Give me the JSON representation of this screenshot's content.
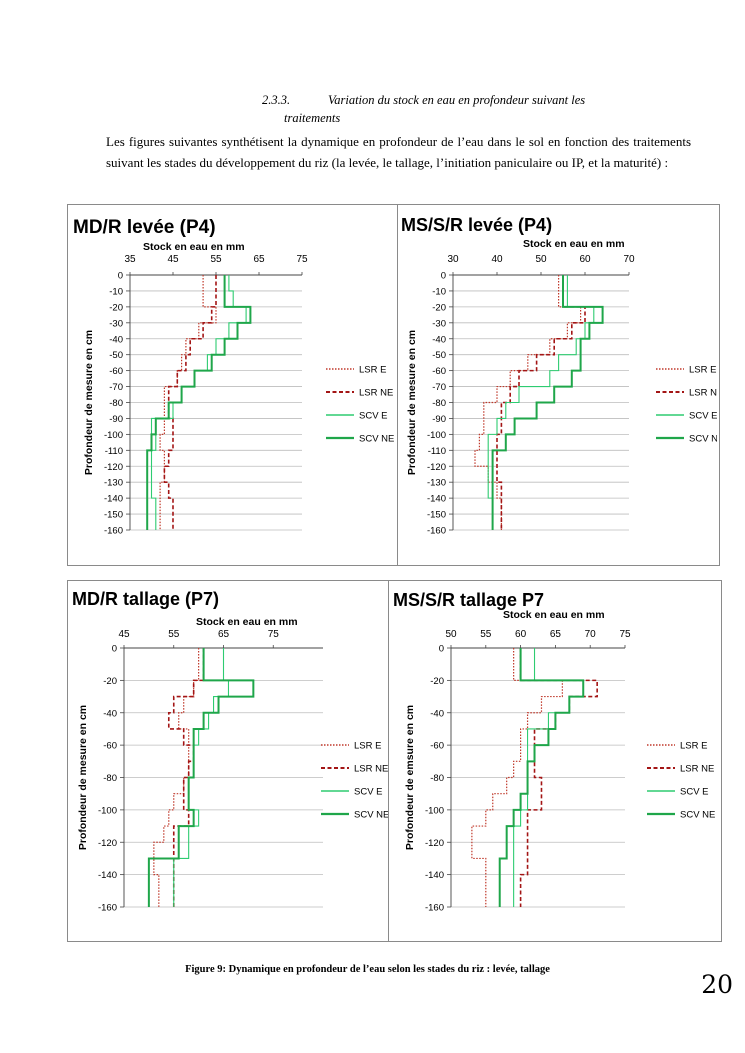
{
  "section": {
    "number": "2.3.3.",
    "title_line1": "Variation du stock en eau en profondeur suivant les",
    "title_line2": "traitements"
  },
  "paragraph": "Les figures suivantes synthétisent la dynamique en profondeur de l’eau dans le sol en fonction des traitements suivant les stades du développement du riz (la levée, le tallage, l’initiation paniculaire ou IP, et la maturité) :",
  "caption": "Figure 9: Dynamique en profondeur de l’eau selon les stades du riz : levée, tallage",
  "page_number": "20",
  "series_styles": [
    {
      "name": "LSR E",
      "color": "#c0392b",
      "dash": "1.5,1.5",
      "width": 1.2
    },
    {
      "name": "LSR NE",
      "color": "#a31515",
      "dash": "4,2.5",
      "width": 1.6
    },
    {
      "name": "SCV E",
      "color": "#2ecc71",
      "dash": "",
      "width": 1.1
    },
    {
      "name": "SCV NE",
      "color": "#1fa64a",
      "dash": "",
      "width": 2.0
    }
  ],
  "chart_data": [
    {
      "type": "line",
      "title": "MD/R levée (P4)",
      "xlabel": "Stock en eau en mm",
      "ylabel": "Profondeur de mesure en cm",
      "xlim": [
        35,
        75
      ],
      "xticks": [
        "35",
        "45",
        "55",
        "65",
        "75"
      ],
      "ylim": [
        -160,
        0
      ],
      "yticks": [
        "0",
        "-10",
        "-20",
        "-30",
        "-40",
        "-50",
        "-60",
        "-70",
        "-80",
        "-90",
        "-100",
        "-110",
        "-120",
        "-130",
        "-140",
        "-150",
        "-160"
      ],
      "depths": [
        0,
        -10,
        -20,
        -30,
        -40,
        -50,
        -60,
        -70,
        -80,
        -90,
        -100,
        -110,
        -120,
        -130,
        -140,
        -150
      ],
      "series": [
        {
          "name": "LSR E",
          "values": [
            52,
            52,
            55,
            51,
            48,
            47,
            46,
            43,
            43,
            43,
            42,
            43,
            43,
            42,
            42,
            42
          ]
        },
        {
          "name": "LSR NE",
          "values": [
            55,
            55,
            54,
            52,
            49,
            48,
            46,
            44,
            44,
            45,
            45,
            44,
            43,
            44,
            45,
            45
          ]
        },
        {
          "name": "SCV E",
          "values": [
            58,
            59,
            62,
            58,
            55,
            53,
            50,
            47,
            45,
            40,
            41,
            40,
            40,
            40,
            41,
            41
          ]
        },
        {
          "name": "SCV NE",
          "values": [
            57,
            57,
            63,
            60,
            57,
            54,
            50,
            47,
            44,
            41,
            40,
            39,
            39,
            39,
            39,
            39
          ]
        }
      ]
    },
    {
      "type": "line",
      "title": "MS/S/R levée (P4)",
      "xlabel": "Stock en eau en mm",
      "ylabel": "Profondeur de mesure en cm",
      "xlim": [
        30,
        70
      ],
      "xticks": [
        "30",
        "40",
        "50",
        "60",
        "70"
      ],
      "ylim": [
        -160,
        0
      ],
      "yticks": [
        "0",
        "-10",
        "-20",
        "-30",
        "-40",
        "-50",
        "-60",
        "-70",
        "-80",
        "-90",
        "-100",
        "-110",
        "-120",
        "-130",
        "-140",
        "-150",
        "-160"
      ],
      "depths": [
        0,
        -10,
        -20,
        -30,
        -40,
        -50,
        -60,
        -70,
        -80,
        -90,
        -100,
        -110,
        -120,
        -130,
        -140,
        -150
      ],
      "series": [
        {
          "name": "LSR E",
          "values": [
            54,
            54,
            59,
            56,
            52,
            47,
            43,
            40,
            37,
            37,
            36,
            35,
            38,
            40,
            41,
            41
          ]
        },
        {
          "name": "LSR NE",
          "values": [
            55,
            55,
            60,
            57,
            53,
            49,
            45,
            43,
            41,
            41,
            40,
            40,
            40,
            41,
            41,
            41
          ]
        },
        {
          "name": "SCV E",
          "values": [
            56,
            56,
            62,
            60,
            58,
            54,
            52,
            45,
            42,
            40,
            38,
            38,
            38,
            38,
            39,
            39
          ]
        },
        {
          "name": "SCV NE",
          "values": [
            55,
            55,
            64,
            61,
            59,
            59,
            57,
            53,
            49,
            44,
            42,
            39,
            39,
            39,
            39,
            39
          ]
        }
      ]
    },
    {
      "type": "line",
      "title": "MD/R tallage (P7)",
      "xlabel": "Stock en eau en mm",
      "ylabel": "Profondeur de mesure en cm",
      "xlim": [
        45,
        85
      ],
      "xticks": [
        "45",
        "55",
        "65",
        "75"
      ],
      "ylim": [
        -160,
        0
      ],
      "yticks": [
        "0",
        "-20",
        "-40",
        "-60",
        "-80",
        "-100",
        "-120",
        "-140",
        "-160"
      ],
      "depths": [
        0,
        -10,
        -20,
        -30,
        -40,
        -50,
        -60,
        -70,
        -80,
        -90,
        -100,
        -110,
        -120,
        -130,
        -140,
        -150
      ],
      "series": [
        {
          "name": "LSR E",
          "values": [
            60,
            60,
            59,
            57,
            56,
            58,
            58,
            58,
            57,
            55,
            54,
            53,
            51,
            51,
            52,
            52
          ]
        },
        {
          "name": "LSR NE",
          "values": [
            61,
            61,
            59,
            55,
            54,
            57,
            59,
            58,
            57,
            57,
            58,
            55,
            55,
            55,
            55,
            55
          ]
        },
        {
          "name": "SCV E",
          "values": [
            65,
            65,
            66,
            63,
            62,
            60,
            59,
            59,
            58,
            58,
            60,
            58,
            58,
            55,
            55,
            55
          ]
        },
        {
          "name": "SCV NE",
          "values": [
            61,
            61,
            71,
            64,
            61,
            59,
            59,
            59,
            58,
            58,
            59,
            56,
            56,
            50,
            50,
            50
          ]
        }
      ]
    },
    {
      "type": "line",
      "title": "MS/S/R tallage P7",
      "xlabel": "Stock en eau en mm",
      "ylabel": "Profondeur de emsure en cm",
      "xlim": [
        50,
        75
      ],
      "xticks": [
        "50",
        "55",
        "60",
        "65",
        "70",
        "75"
      ],
      "ylim": [
        -160,
        0
      ],
      "yticks": [
        "0",
        "-20",
        "-40",
        "-60",
        "-80",
        "-100",
        "-120",
        "-140",
        "-160"
      ],
      "depths": [
        0,
        -10,
        -20,
        -30,
        -40,
        -50,
        -60,
        -70,
        -80,
        -90,
        -100,
        -110,
        -120,
        -130,
        -140,
        -150
      ],
      "series": [
        {
          "name": "LSR E",
          "values": [
            59,
            59,
            66,
            63,
            61,
            60,
            60,
            59,
            58,
            56,
            55,
            53,
            53,
            55,
            55,
            55
          ]
        },
        {
          "name": "LSR NE",
          "values": [
            60,
            60,
            71,
            67,
            65,
            62,
            62,
            62,
            63,
            63,
            61,
            61,
            61,
            61,
            60,
            60
          ]
        },
        {
          "name": "SCV E",
          "values": [
            62,
            62,
            69,
            67,
            64,
            61,
            61,
            61,
            61,
            61,
            60,
            59,
            59,
            59,
            59,
            59
          ]
        },
        {
          "name": "SCV NE",
          "values": [
            60,
            60,
            69,
            67,
            65,
            64,
            62,
            61,
            61,
            60,
            59,
            58,
            58,
            57,
            57,
            57
          ]
        }
      ]
    }
  ]
}
